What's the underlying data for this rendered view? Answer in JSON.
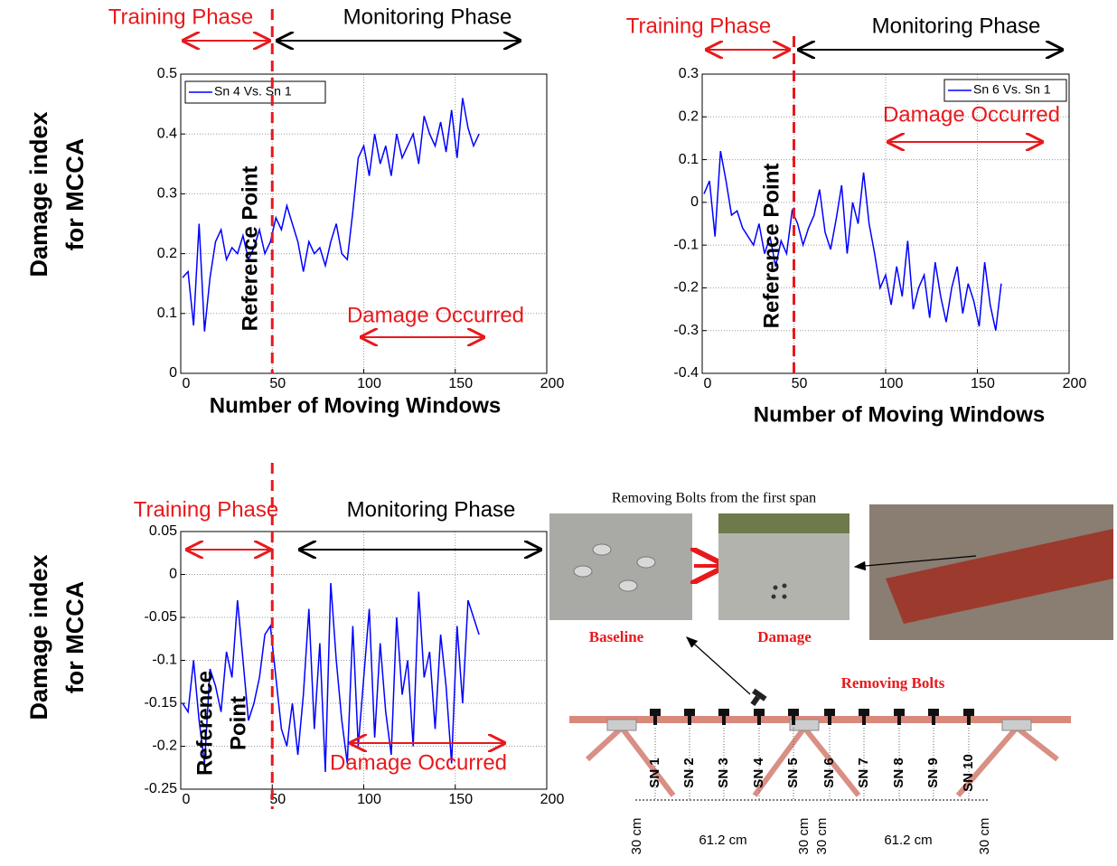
{
  "chart_data": [
    {
      "type": "line",
      "ylabel": [
        "Damage index",
        "for MCCA"
      ],
      "xlabel": "Number of Moving Windows",
      "annotations": {
        "training_phase": "Training Phase",
        "monitoring_phase": "Monitoring Phase",
        "reference_point": "Reference Point",
        "damage_occurred": "Damage Occurred"
      },
      "reference_x": 50,
      "xlim": [
        0,
        200
      ],
      "xticks": [
        0,
        50,
        100,
        150,
        200
      ],
      "ylim": [
        0,
        0.5
      ],
      "yticks": [
        0,
        0.1,
        0.2,
        0.3,
        0.4,
        0.5
      ],
      "grid": true,
      "legend": "upper left",
      "x": [
        1,
        4,
        7,
        10,
        13,
        16,
        19,
        22,
        25,
        28,
        31,
        34,
        37,
        40,
        43,
        46,
        49,
        52,
        55,
        58,
        61,
        64,
        67,
        70,
        73,
        76,
        79,
        82,
        85,
        88,
        91,
        94,
        97,
        100,
        103,
        106,
        109,
        112,
        115,
        118,
        121,
        124,
        127,
        130,
        133,
        136,
        139,
        142,
        145,
        148,
        151,
        154,
        157,
        160,
        163
      ],
      "series": [
        {
          "name": "Sn 4 Vs. Sn 1",
          "color": "#0000ff",
          "values": [
            0.16,
            0.17,
            0.08,
            0.25,
            0.07,
            0.16,
            0.22,
            0.24,
            0.19,
            0.21,
            0.2,
            0.23,
            0.19,
            0.21,
            0.24,
            0.2,
            0.22,
            0.26,
            0.24,
            0.28,
            0.25,
            0.22,
            0.17,
            0.22,
            0.2,
            0.21,
            0.18,
            0.22,
            0.25,
            0.2,
            0.19,
            0.27,
            0.36,
            0.38,
            0.33,
            0.4,
            0.35,
            0.38,
            0.33,
            0.4,
            0.36,
            0.38,
            0.4,
            0.35,
            0.43,
            0.4,
            0.38,
            0.42,
            0.37,
            0.44,
            0.36,
            0.46,
            0.41,
            0.38,
            0.4
          ]
        }
      ]
    },
    {
      "type": "line",
      "xlabel": "Number of Moving Windows",
      "annotations": {
        "training_phase": "Training Phase",
        "monitoring_phase": "Monitoring Phase",
        "reference_point": "Reference Point",
        "damage_occurred": "Damage Occurred"
      },
      "reference_x": 50,
      "xlim": [
        0,
        200
      ],
      "xticks": [
        0,
        50,
        100,
        150,
        200
      ],
      "ylim": [
        -0.4,
        0.3
      ],
      "yticks": [
        -0.4,
        -0.3,
        -0.2,
        -0.1,
        0,
        0.1,
        0.2,
        0.3
      ],
      "grid": true,
      "legend": "upper right",
      "x": [
        1,
        4,
        7,
        10,
        13,
        16,
        19,
        22,
        25,
        28,
        31,
        34,
        37,
        40,
        43,
        46,
        49,
        52,
        55,
        58,
        61,
        64,
        67,
        70,
        73,
        76,
        79,
        82,
        85,
        88,
        91,
        94,
        97,
        100,
        103,
        106,
        109,
        112,
        115,
        118,
        121,
        124,
        127,
        130,
        133,
        136,
        139,
        142,
        145,
        148,
        151,
        154,
        157,
        160,
        163
      ],
      "series": [
        {
          "name": "Sn 6 Vs. Sn 1",
          "color": "#0000ff",
          "values": [
            0.02,
            0.05,
            -0.08,
            0.12,
            0.05,
            -0.03,
            -0.02,
            -0.06,
            -0.08,
            -0.1,
            -0.05,
            -0.12,
            -0.08,
            -0.15,
            -0.09,
            -0.12,
            -0.02,
            -0.05,
            -0.1,
            -0.06,
            -0.03,
            0.03,
            -0.07,
            -0.11,
            -0.04,
            0.04,
            -0.12,
            0.0,
            -0.05,
            0.07,
            -0.05,
            -0.12,
            -0.2,
            -0.17,
            -0.24,
            -0.15,
            -0.22,
            -0.09,
            -0.25,
            -0.2,
            -0.17,
            -0.27,
            -0.14,
            -0.22,
            -0.28,
            -0.2,
            -0.15,
            -0.26,
            -0.19,
            -0.23,
            -0.29,
            -0.14,
            -0.24,
            -0.3,
            -0.19
          ]
        }
      ]
    },
    {
      "type": "line",
      "ylabel": [
        "Damage index",
        "for MCCA"
      ],
      "annotations": {
        "training_phase": "Training Phase",
        "monitoring_phase": "Monitoring Phase",
        "reference_point": [
          "Reference",
          "Point"
        ],
        "damage_occurred": "Damage Occurred"
      },
      "reference_x": 50,
      "xlim": [
        0,
        200
      ],
      "xticks": [
        0,
        50,
        100,
        150,
        200
      ],
      "ylim": [
        -0.25,
        0.05
      ],
      "yticks": [
        -0.25,
        -0.2,
        -0.15,
        -0.1,
        -0.05,
        0,
        0.05
      ],
      "grid": true,
      "x": [
        1,
        4,
        7,
        10,
        13,
        16,
        19,
        22,
        25,
        28,
        31,
        34,
        37,
        40,
        43,
        46,
        49,
        52,
        55,
        58,
        61,
        64,
        67,
        70,
        73,
        76,
        79,
        82,
        85,
        88,
        91,
        94,
        97,
        100,
        103,
        106,
        109,
        112,
        115,
        118,
        121,
        124,
        127,
        130,
        133,
        136,
        139,
        142,
        145,
        148,
        151,
        154,
        157,
        160,
        163
      ],
      "series": [
        {
          "color": "#0000ff",
          "values": [
            -0.15,
            -0.16,
            -0.1,
            -0.17,
            -0.22,
            -0.11,
            -0.13,
            -0.16,
            -0.09,
            -0.12,
            -0.03,
            -0.1,
            -0.17,
            -0.15,
            -0.12,
            -0.07,
            -0.06,
            -0.12,
            -0.18,
            -0.2,
            -0.15,
            -0.21,
            -0.14,
            -0.04,
            -0.18,
            -0.08,
            -0.23,
            -0.01,
            -0.1,
            -0.17,
            -0.22,
            -0.06,
            -0.2,
            -0.12,
            -0.04,
            -0.19,
            -0.08,
            -0.16,
            -0.21,
            -0.05,
            -0.14,
            -0.1,
            -0.2,
            -0.02,
            -0.12,
            -0.09,
            -0.18,
            -0.07,
            -0.13,
            -0.22,
            -0.06,
            -0.15,
            -0.03,
            -0.05,
            -0.07
          ]
        }
      ]
    }
  ],
  "diagram": {
    "caption": "Removing Bolts from the first span",
    "baseline": "Baseline",
    "damage": "Damage",
    "removing_bolts": "Removing Bolts",
    "sensors": [
      "SN 1",
      "SN 2",
      "SN 3",
      "SN 4",
      "SN 5",
      "SN 6",
      "SN 7",
      "SN 8",
      "SN 9",
      "SN 10"
    ],
    "dimensions": [
      "30 cm",
      "61.2 cm",
      "30 cm",
      "30 cm",
      "61.2 cm",
      "30 cm"
    ]
  }
}
